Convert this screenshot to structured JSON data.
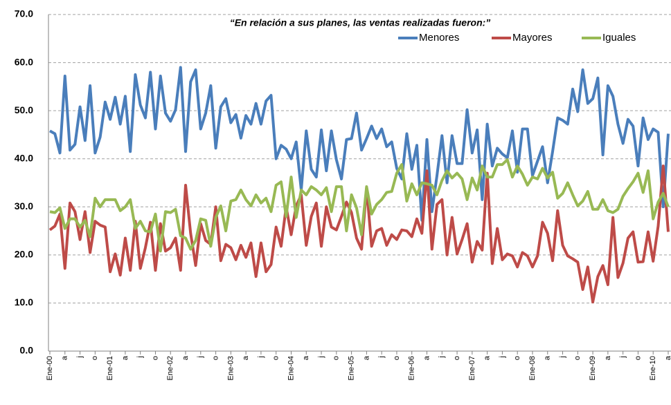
{
  "chart_data": {
    "type": "line",
    "title": "“En relación a sus planes, las ventas realizadas fueron:”",
    "categories": [
      "Ene-00",
      null,
      null,
      "a",
      null,
      null,
      "j",
      null,
      null,
      "o",
      null,
      null,
      "Ene-01",
      null,
      null,
      "a",
      null,
      null,
      "j",
      null,
      null,
      "o",
      null,
      null,
      "Ene-02",
      null,
      null,
      "a",
      null,
      null,
      "j",
      null,
      null,
      "o",
      null,
      null,
      "Ene-03",
      null,
      null,
      "a",
      null,
      null,
      "j",
      null,
      null,
      "o",
      null,
      null,
      "Ene-04",
      null,
      null,
      "a",
      null,
      null,
      "j",
      null,
      null,
      "o",
      null,
      null,
      "Ene-05",
      null,
      null,
      "a",
      null,
      null,
      "j",
      null,
      null,
      "o",
      null,
      null,
      "Ene-06",
      null,
      null,
      "a",
      null,
      null,
      "j",
      null,
      null,
      "o",
      null,
      null,
      "Ene-07",
      null,
      null,
      "a",
      null,
      null,
      "j",
      null,
      null,
      "o",
      null,
      null,
      "Ene-08",
      null,
      null,
      "a",
      null,
      null,
      "j",
      null,
      null,
      "o",
      null,
      null,
      "Ene-09",
      null,
      null,
      "a",
      null,
      null,
      "j",
      null,
      null,
      "o",
      null,
      null,
      "Ene-10",
      null,
      null,
      "a"
    ],
    "series": [
      {
        "name": "Menores",
        "color": "#4a7ebb",
        "values": [
          45.8,
          45.2,
          41.2,
          57.2,
          41.8,
          43,
          50.8,
          43.8,
          55.2,
          41.2,
          44.5,
          51.8,
          48.2,
          52.8,
          47.2,
          53,
          41.5,
          57.5,
          51.2,
          48.5,
          58,
          46.2,
          57.2,
          49.5,
          47.8,
          50.2,
          59,
          41.5,
          56,
          58.5,
          46.2,
          49.5,
          55.2,
          42.2,
          50.8,
          52.5,
          47.5,
          49.2,
          44.3,
          49,
          47.2,
          51.5,
          47.2,
          52,
          53.2,
          40,
          42.8,
          42,
          40,
          43.5,
          33.5,
          45.8,
          37.8,
          36.2,
          46,
          37.5,
          45.8,
          39.8,
          35.8,
          44,
          44.2,
          49.5,
          41.8,
          44.2,
          46.8,
          44.2,
          46.2,
          42.5,
          43.5,
          38,
          35.8,
          45.2,
          37.8,
          42.8,
          27.2,
          44,
          29,
          36.5,
          44.8,
          35,
          44.8,
          39,
          39,
          50.2,
          41.2,
          46,
          31.5,
          47.2,
          38.5,
          42.2,
          41,
          40.2,
          45.8,
          37.2,
          46.2,
          46.2,
          36.5,
          39.5,
          42.5,
          35,
          41.5,
          48.5,
          48,
          47.2,
          54.5,
          49.8,
          58.5,
          51.5,
          52.5,
          56.8,
          40.8,
          55.2,
          53,
          47.2,
          43.2,
          48.2,
          46.8,
          38.5,
          48.5,
          44,
          46.2,
          45.5,
          30,
          45.2
        ]
      },
      {
        "name": "Mayores",
        "color": "#be4b48",
        "values": [
          25.2,
          26,
          28.5,
          17.2,
          30.8,
          29,
          23.2,
          29,
          20.5,
          27,
          26.2,
          25.8,
          16.5,
          20.2,
          15.8,
          23.5,
          16.8,
          27,
          17.2,
          21.5,
          26.8,
          16.8,
          26.5,
          20.8,
          21.5,
          23.5,
          16.8,
          34.5,
          24.5,
          17.8,
          26.5,
          23,
          22.2,
          30,
          18.8,
          22.2,
          21.5,
          19,
          22,
          19.5,
          22.5,
          15.5,
          22.5,
          16.5,
          18,
          25.8,
          21.8,
          30,
          24.2,
          30.2,
          32.5,
          22,
          28,
          30.8,
          21.8,
          30,
          25.8,
          25.2,
          28,
          31,
          28.8,
          23.5,
          21.2,
          34,
          21.8,
          25,
          25.5,
          22,
          24.2,
          23.2,
          25.2,
          25,
          23.8,
          27.5,
          24.5,
          37.5,
          21.2,
          30.5,
          31.5,
          20,
          27.8,
          20.2,
          23.2,
          26.5,
          18.5,
          22.8,
          21,
          37,
          18.2,
          25.5,
          19,
          20.2,
          19.8,
          17.5,
          20.5,
          19.8,
          17.5,
          19.8,
          26.8,
          24.5,
          18.8,
          29.2,
          22,
          19.8,
          19.2,
          18.5,
          12.8,
          17.5,
          10.2,
          15.5,
          17.8,
          13.8,
          27.8,
          15.3,
          18.3,
          23.5,
          24.8,
          18.5,
          18.6,
          24.8,
          18.7,
          26,
          38.5,
          24.8
        ]
      },
      {
        "name": "Iguales",
        "color": "#98b954",
        "values": [
          29,
          28.8,
          29.8,
          25.5,
          27.5,
          27.5,
          25.8,
          27.2,
          23.8,
          31.8,
          30,
          31.5,
          31.5,
          31.5,
          29.2,
          30,
          31.5,
          25.5,
          27,
          25,
          24.8,
          28.5,
          20.8,
          29,
          28.8,
          29.5,
          24,
          23.5,
          21.2,
          23,
          27.5,
          27.2,
          21.8,
          27.8,
          30.2,
          25,
          31.2,
          31.5,
          33.5,
          31.5,
          30.2,
          32.5,
          30.8,
          31.8,
          29,
          34.5,
          35.2,
          28,
          36.2,
          27.8,
          33.5,
          32.5,
          34.2,
          33.5,
          32.5,
          34,
          29,
          34.2,
          34.2,
          25,
          32.5,
          29.8,
          24.2,
          34.2,
          28.5,
          30.5,
          31.5,
          33,
          33.2,
          37,
          38.8,
          31.2,
          34.8,
          32.5,
          35,
          34.8,
          34.5,
          32.5,
          35.5,
          37.5,
          36,
          37,
          35.8,
          31.5,
          36,
          33.5,
          38.5,
          36.2,
          36.2,
          38.8,
          38.8,
          39.8,
          36.2,
          38.5,
          36.8,
          34.5,
          36.2,
          35.8,
          38,
          36,
          37.2,
          31.8,
          32.8,
          35,
          32.5,
          30.2,
          31.2,
          33.2,
          29.5,
          29.5,
          31.5,
          29.2,
          28.8,
          29.5,
          32.2,
          33.8,
          35.2,
          37,
          33,
          37.5,
          27.5,
          31,
          32.8,
          30
        ]
      }
    ],
    "ylim": [
      0,
      70
    ],
    "yticks": [
      {
        "value": 0,
        "label": "0.0"
      },
      {
        "value": 10,
        "label": "10.0"
      },
      {
        "value": 20,
        "label": "20.0"
      },
      {
        "value": 30,
        "label": "30.0"
      },
      {
        "value": 40,
        "label": "40.0"
      },
      {
        "value": 50,
        "label": "50.0"
      },
      {
        "value": 60,
        "label": "60.0"
      },
      {
        "value": 70,
        "label": "70.0"
      }
    ],
    "grid": true,
    "legend": "top-right"
  }
}
